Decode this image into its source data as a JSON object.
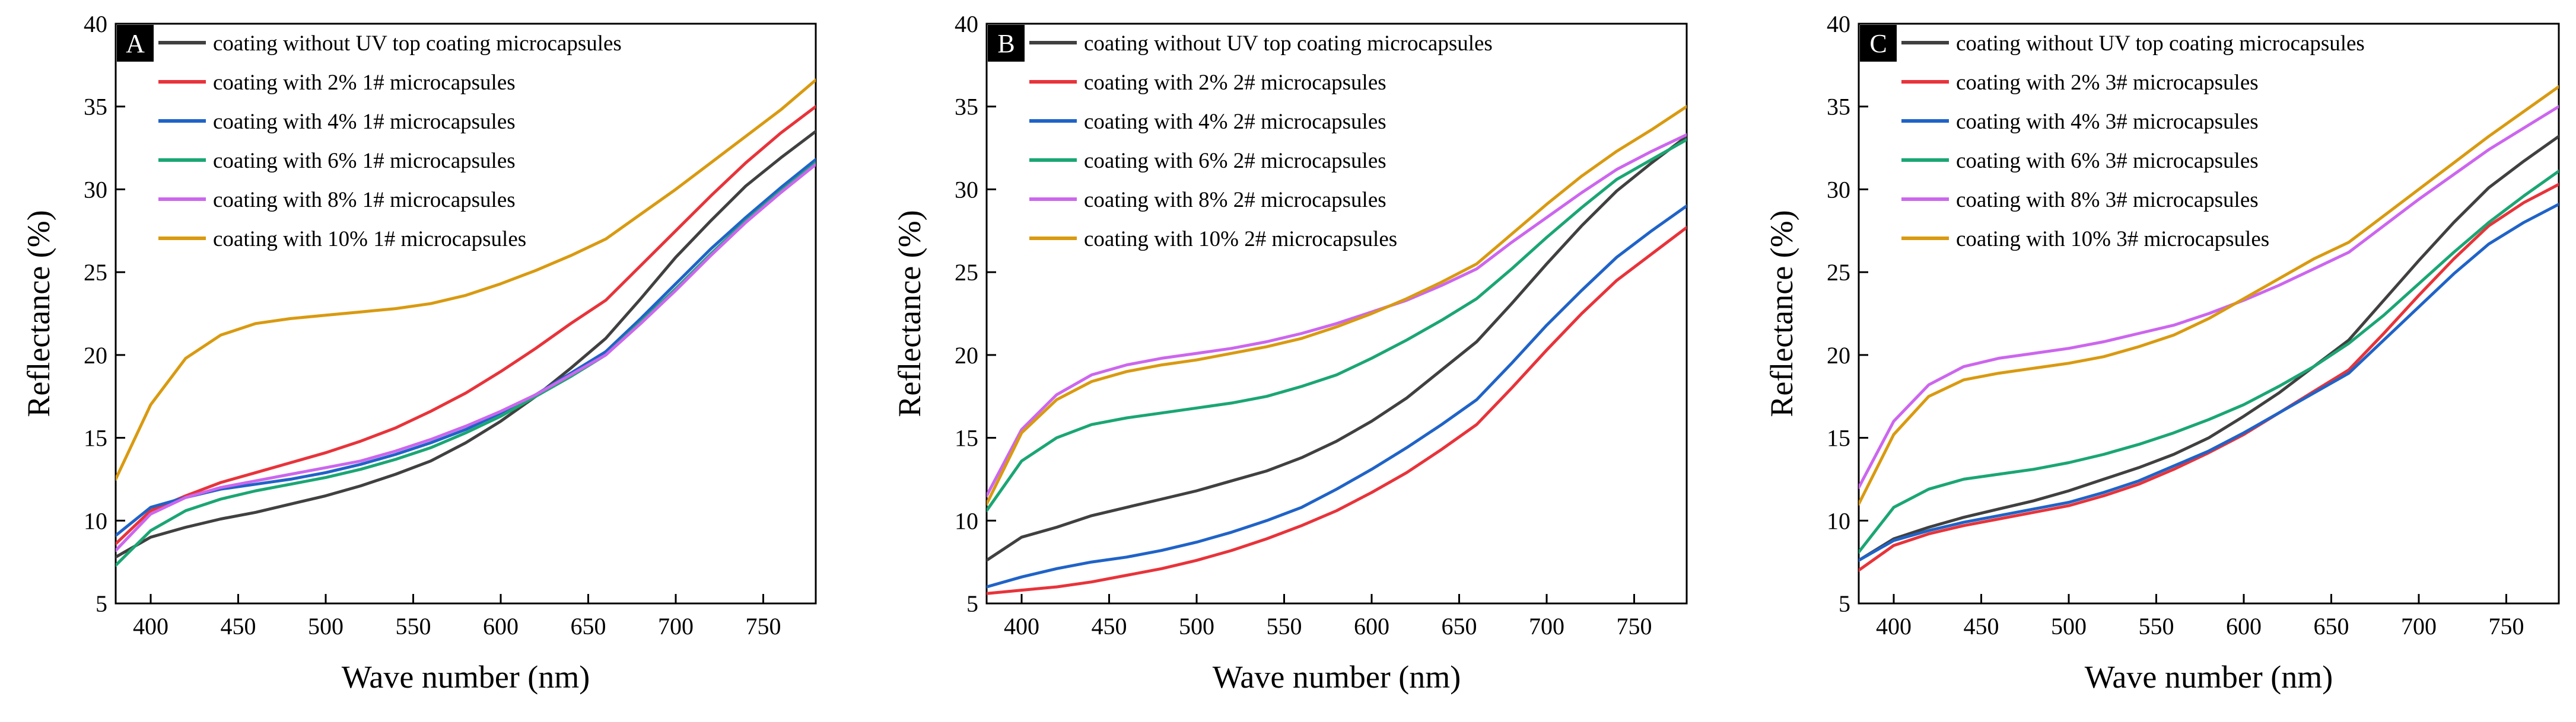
{
  "figure": {
    "panel_ids": [
      "A",
      "B",
      "C"
    ]
  },
  "chart_data": [
    {
      "panel": "A",
      "type": "line",
      "xlabel": "Wave number (nm)",
      "ylabel": "Reflectance (%)",
      "xlim": [
        380,
        780
      ],
      "ylim": [
        5,
        40
      ],
      "xticks": [
        400,
        450,
        500,
        550,
        600,
        650,
        700,
        750
      ],
      "yticks": [
        5,
        10,
        15,
        20,
        25,
        30,
        35,
        40
      ],
      "legend_position": "top-left",
      "x": [
        380,
        400,
        420,
        440,
        460,
        480,
        500,
        520,
        540,
        560,
        580,
        600,
        620,
        640,
        660,
        680,
        700,
        720,
        740,
        760,
        780
      ],
      "series": [
        {
          "name": "coating without UV top coating microcapsules",
          "color": "#404040",
          "values": [
            7.8,
            9.0,
            9.6,
            10.1,
            10.5,
            11.0,
            11.5,
            12.1,
            12.8,
            13.6,
            14.7,
            16.0,
            17.5,
            19.2,
            21.0,
            23.4,
            25.9,
            28.1,
            30.2,
            31.9,
            33.5
          ]
        },
        {
          "name": "coating with 2% 1# microcapsules",
          "color": "#e8333a",
          "values": [
            8.6,
            10.6,
            11.5,
            12.3,
            12.9,
            13.5,
            14.1,
            14.8,
            15.6,
            16.6,
            17.7,
            19.0,
            20.4,
            21.9,
            23.3,
            25.4,
            27.5,
            29.6,
            31.6,
            33.4,
            35.0
          ]
        },
        {
          "name": "coating with 4% 1# microcapsules",
          "color": "#1f63c8",
          "values": [
            9.1,
            10.8,
            11.4,
            11.9,
            12.2,
            12.5,
            12.9,
            13.4,
            14.0,
            14.7,
            15.5,
            16.5,
            17.6,
            18.9,
            20.2,
            22.2,
            24.3,
            26.4,
            28.3,
            30.1,
            31.8
          ]
        },
        {
          "name": "coating with 6% 1# microcapsules",
          "color": "#1aa674",
          "values": [
            7.3,
            9.4,
            10.6,
            11.3,
            11.8,
            12.2,
            12.6,
            13.1,
            13.7,
            14.4,
            15.3,
            16.3,
            17.5,
            18.7,
            20.0,
            22.0,
            24.0,
            26.1,
            28.1,
            29.9,
            31.6
          ]
        },
        {
          "name": "coating with 8% 1# microcapsules",
          "color": "#cc66ee",
          "values": [
            8.2,
            10.4,
            11.4,
            12.0,
            12.4,
            12.8,
            13.2,
            13.6,
            14.2,
            14.9,
            15.7,
            16.6,
            17.6,
            18.8,
            20.0,
            21.9,
            23.9,
            26.0,
            28.0,
            29.8,
            31.5
          ]
        },
        {
          "name": "coating with 10% 1# microcapsules",
          "color": "#d99a10",
          "values": [
            12.5,
            17.0,
            19.8,
            21.2,
            21.9,
            22.2,
            22.4,
            22.6,
            22.8,
            23.1,
            23.6,
            24.3,
            25.1,
            26.0,
            27.0,
            28.5,
            30.0,
            31.6,
            33.2,
            34.8,
            36.6
          ]
        }
      ]
    },
    {
      "panel": "B",
      "type": "line",
      "xlabel": "Wave number (nm)",
      "ylabel": "Reflectance (%)",
      "xlim": [
        380,
        780
      ],
      "ylim": [
        5,
        40
      ],
      "xticks": [
        400,
        450,
        500,
        550,
        600,
        650,
        700,
        750
      ],
      "yticks": [
        5,
        10,
        15,
        20,
        25,
        30,
        35,
        40
      ],
      "legend_position": "top-left",
      "x": [
        380,
        400,
        420,
        440,
        460,
        480,
        500,
        520,
        540,
        560,
        580,
        600,
        620,
        640,
        660,
        680,
        700,
        720,
        740,
        760,
        780
      ],
      "series": [
        {
          "name": "coating without UV top coating microcapsules",
          "color": "#404040",
          "values": [
            7.6,
            9.0,
            9.6,
            10.3,
            10.8,
            11.3,
            11.8,
            12.4,
            13.0,
            13.8,
            14.8,
            16.0,
            17.4,
            19.1,
            20.8,
            23.1,
            25.5,
            27.8,
            29.9,
            31.6,
            33.2
          ]
        },
        {
          "name": "coating with 2% 2# microcapsules",
          "color": "#e8333a",
          "values": [
            5.6,
            5.8,
            6.0,
            6.3,
            6.7,
            7.1,
            7.6,
            8.2,
            8.9,
            9.7,
            10.6,
            11.7,
            12.9,
            14.3,
            15.8,
            18.0,
            20.3,
            22.5,
            24.5,
            26.1,
            27.7
          ]
        },
        {
          "name": "coating with 4% 2# microcapsules",
          "color": "#1f63c8",
          "values": [
            6.0,
            6.6,
            7.1,
            7.5,
            7.8,
            8.2,
            8.7,
            9.3,
            10.0,
            10.8,
            11.9,
            13.1,
            14.4,
            15.8,
            17.3,
            19.5,
            21.8,
            23.9,
            25.9,
            27.5,
            29.0
          ]
        },
        {
          "name": "coating with 6% 2# microcapsules",
          "color": "#1aa674",
          "values": [
            10.6,
            13.6,
            15.0,
            15.8,
            16.2,
            16.5,
            16.8,
            17.1,
            17.5,
            18.1,
            18.8,
            19.8,
            20.9,
            22.1,
            23.4,
            25.2,
            27.1,
            28.9,
            30.6,
            31.8,
            33.0
          ]
        },
        {
          "name": "coating with 8% 2# microcapsules",
          "color": "#cc66ee",
          "values": [
            11.5,
            15.5,
            17.6,
            18.8,
            19.4,
            19.8,
            20.1,
            20.4,
            20.8,
            21.3,
            21.9,
            22.6,
            23.3,
            24.2,
            25.2,
            26.8,
            28.3,
            29.8,
            31.2,
            32.3,
            33.3
          ]
        },
        {
          "name": "coating with 10% 2# microcapsules",
          "color": "#d99a10",
          "values": [
            11.0,
            15.3,
            17.3,
            18.4,
            19.0,
            19.4,
            19.7,
            20.1,
            20.5,
            21.0,
            21.7,
            22.5,
            23.4,
            24.4,
            25.5,
            27.3,
            29.1,
            30.8,
            32.3,
            33.6,
            35.0
          ]
        }
      ]
    },
    {
      "panel": "C",
      "type": "line",
      "xlabel": "Wave number (nm)",
      "ylabel": "Reflectance (%)",
      "xlim": [
        380,
        780
      ],
      "ylim": [
        5,
        40
      ],
      "xticks": [
        400,
        450,
        500,
        550,
        600,
        650,
        700,
        750
      ],
      "yticks": [
        5,
        10,
        15,
        20,
        25,
        30,
        35,
        40
      ],
      "legend_position": "top-left",
      "x": [
        380,
        400,
        420,
        440,
        460,
        480,
        500,
        520,
        540,
        560,
        580,
        600,
        620,
        640,
        660,
        680,
        700,
        720,
        740,
        760,
        780
      ],
      "series": [
        {
          "name": "coating without UV top coating microcapsules",
          "color": "#404040",
          "values": [
            7.6,
            8.9,
            9.6,
            10.2,
            10.7,
            11.2,
            11.8,
            12.5,
            13.2,
            14.0,
            15.0,
            16.3,
            17.7,
            19.3,
            20.9,
            23.3,
            25.7,
            28.0,
            30.1,
            31.7,
            33.2
          ]
        },
        {
          "name": "coating with 2% 3# microcapsules",
          "color": "#e8333a",
          "values": [
            7.0,
            8.5,
            9.2,
            9.7,
            10.1,
            10.5,
            10.9,
            11.5,
            12.2,
            13.1,
            14.1,
            15.2,
            16.5,
            17.8,
            19.1,
            21.3,
            23.6,
            25.8,
            27.8,
            29.2,
            30.3
          ]
        },
        {
          "name": "coating with 4% 3# microcapsules",
          "color": "#1f63c8",
          "values": [
            7.6,
            8.8,
            9.4,
            9.9,
            10.3,
            10.7,
            11.1,
            11.7,
            12.4,
            13.3,
            14.2,
            15.3,
            16.5,
            17.7,
            18.9,
            20.9,
            22.9,
            24.9,
            26.7,
            28.0,
            29.1
          ]
        },
        {
          "name": "coating with 6% 3# microcapsules",
          "color": "#1aa674",
          "values": [
            8.1,
            10.8,
            11.9,
            12.5,
            12.8,
            13.1,
            13.5,
            14.0,
            14.6,
            15.3,
            16.1,
            17.0,
            18.1,
            19.3,
            20.7,
            22.4,
            24.3,
            26.2,
            28.0,
            29.6,
            31.1
          ]
        },
        {
          "name": "coating with 8% 3# microcapsules",
          "color": "#cc66ee",
          "values": [
            12.0,
            16.0,
            18.2,
            19.3,
            19.8,
            20.1,
            20.4,
            20.8,
            21.3,
            21.8,
            22.5,
            23.3,
            24.2,
            25.2,
            26.2,
            27.8,
            29.4,
            30.9,
            32.4,
            33.7,
            35.0
          ]
        },
        {
          "name": "coating with 10% 3# microcapsules",
          "color": "#d99a10",
          "values": [
            11.0,
            15.2,
            17.5,
            18.5,
            18.9,
            19.2,
            19.5,
            19.9,
            20.5,
            21.2,
            22.2,
            23.4,
            24.6,
            25.8,
            26.8,
            28.4,
            30.0,
            31.6,
            33.2,
            34.7,
            36.2
          ]
        }
      ]
    }
  ]
}
